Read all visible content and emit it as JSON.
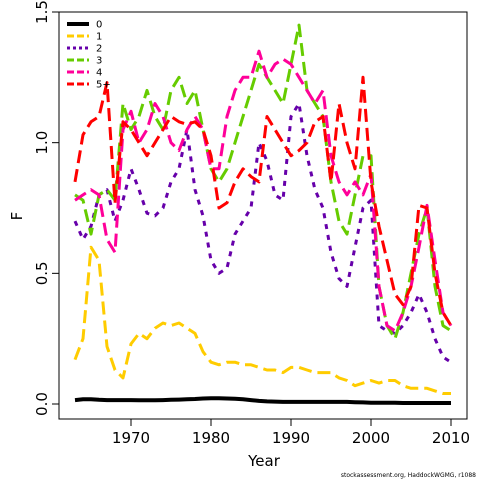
{
  "chart_data": {
    "type": "line",
    "xlabel": "Year",
    "ylabel": "F",
    "xlim": [
      1962,
      2012
    ],
    "ylim": [
      0,
      1.5
    ],
    "x_ticks": [
      1970,
      1980,
      1990,
      2000,
      2010
    ],
    "x_tick_labels": [
      "1970",
      "1980",
      "1990",
      "2000",
      "2010"
    ],
    "y_ticks": [
      0,
      0.5,
      1,
      1.5
    ],
    "y_tick_labels": [
      "0.0",
      "0.5",
      "1.0",
      "1.5"
    ],
    "grid": false,
    "legend_position": "top-left",
    "credit": "stockassessment.org, HaddockWGMG, r1088",
    "years": [
      1963,
      1964,
      1965,
      1966,
      1967,
      1968,
      1969,
      1970,
      1971,
      1972,
      1973,
      1974,
      1975,
      1976,
      1977,
      1978,
      1979,
      1980,
      1981,
      1982,
      1983,
      1984,
      1985,
      1986,
      1987,
      1988,
      1989,
      1990,
      1991,
      1992,
      1993,
      1994,
      1995,
      1996,
      1997,
      1998,
      1999,
      2000,
      2001,
      2002,
      2003,
      2004,
      2005,
      2006,
      2007,
      2008,
      2009,
      2010
    ],
    "series": [
      {
        "name": "0",
        "color": "#000000",
        "dash": "solid",
        "width": 4,
        "values": [
          0.015,
          0.018,
          0.018,
          0.016,
          0.015,
          0.015,
          0.015,
          0.015,
          0.014,
          0.014,
          0.014,
          0.015,
          0.016,
          0.017,
          0.018,
          0.019,
          0.021,
          0.022,
          0.022,
          0.021,
          0.02,
          0.018,
          0.015,
          0.012,
          0.01,
          0.009,
          0.008,
          0.008,
          0.008,
          0.008,
          0.008,
          0.008,
          0.008,
          0.008,
          0.008,
          0.007,
          0.006,
          0.005,
          0.005,
          0.005,
          0.005,
          0.004,
          0.004,
          0.004,
          0.004,
          0.004,
          0.004,
          0.004
        ]
      },
      {
        "name": "1",
        "color": "#ffcc00",
        "dash": "dashed",
        "width": 3,
        "values": [
          0.17,
          0.25,
          0.6,
          0.55,
          0.22,
          0.13,
          0.1,
          0.23,
          0.27,
          0.25,
          0.29,
          0.31,
          0.3,
          0.31,
          0.29,
          0.27,
          0.2,
          0.16,
          0.15,
          0.16,
          0.16,
          0.15,
          0.15,
          0.14,
          0.13,
          0.13,
          0.12,
          0.14,
          0.14,
          0.13,
          0.12,
          0.12,
          0.12,
          0.1,
          0.09,
          0.07,
          0.08,
          0.09,
          0.08,
          0.09,
          0.09,
          0.07,
          0.06,
          0.06,
          0.06,
          0.05,
          0.04,
          0.04
        ]
      },
      {
        "name": "2",
        "color": "#6600aa",
        "dash": "dotted",
        "width": 3,
        "values": [
          0.7,
          0.63,
          0.68,
          0.8,
          0.82,
          0.7,
          0.78,
          0.9,
          0.82,
          0.73,
          0.72,
          0.75,
          0.85,
          0.9,
          1.05,
          0.82,
          0.72,
          0.55,
          0.5,
          0.52,
          0.65,
          0.7,
          0.75,
          1.0,
          0.93,
          0.8,
          0.78,
          1.1,
          1.15,
          0.95,
          0.82,
          0.75,
          0.58,
          0.48,
          0.45,
          0.6,
          0.75,
          0.78,
          0.3,
          0.28,
          0.27,
          0.3,
          0.35,
          0.42,
          0.35,
          0.25,
          0.18,
          0.16
        ]
      },
      {
        "name": "3",
        "color": "#66cc00",
        "dash": "dashed",
        "width": 3,
        "values": [
          0.8,
          0.78,
          0.65,
          0.8,
          0.82,
          0.78,
          1.15,
          1.05,
          1.1,
          1.2,
          1.1,
          1.05,
          1.2,
          1.25,
          1.15,
          1.2,
          1.05,
          0.9,
          0.85,
          0.9,
          1.0,
          1.1,
          1.2,
          1.3,
          1.25,
          1.2,
          1.15,
          1.3,
          1.45,
          1.2,
          1.15,
          1.1,
          0.85,
          0.7,
          0.65,
          0.8,
          0.95,
          0.95,
          0.45,
          0.3,
          0.25,
          0.35,
          0.5,
          0.65,
          0.75,
          0.45,
          0.3,
          0.28
        ]
      },
      {
        "name": "4",
        "color": "#ff0099",
        "dash": "dashed",
        "width": 3,
        "values": [
          0.78,
          0.8,
          0.82,
          0.8,
          0.63,
          0.58,
          1.05,
          1.12,
          1.0,
          1.05,
          1.15,
          1.1,
          1.0,
          0.97,
          1.05,
          1.1,
          1.05,
          0.9,
          0.9,
          1.1,
          1.2,
          1.25,
          1.25,
          1.35,
          1.25,
          1.3,
          1.32,
          1.3,
          1.25,
          1.2,
          1.15,
          1.2,
          0.95,
          0.85,
          0.8,
          0.85,
          0.8,
          0.88,
          0.45,
          0.3,
          0.28,
          0.35,
          0.45,
          0.6,
          0.76,
          0.55,
          0.35,
          0.3
        ]
      },
      {
        "name": "5+",
        "color": "#ff0000",
        "dash": "dashed",
        "width": 3,
        "values": [
          0.85,
          1.03,
          1.08,
          1.1,
          1.23,
          0.77,
          1.08,
          1.05,
          1.0,
          0.95,
          1.0,
          1.05,
          1.1,
          1.08,
          1.07,
          1.08,
          1.05,
          0.95,
          0.75,
          0.77,
          0.85,
          0.9,
          0.87,
          0.85,
          1.1,
          1.05,
          1.0,
          0.95,
          0.97,
          1.0,
          1.08,
          1.1,
          0.85,
          1.15,
          1.0,
          0.9,
          1.25,
          0.85,
          0.68,
          0.55,
          0.42,
          0.38,
          0.45,
          0.76,
          0.75,
          0.5,
          0.35,
          0.3
        ]
      }
    ]
  }
}
